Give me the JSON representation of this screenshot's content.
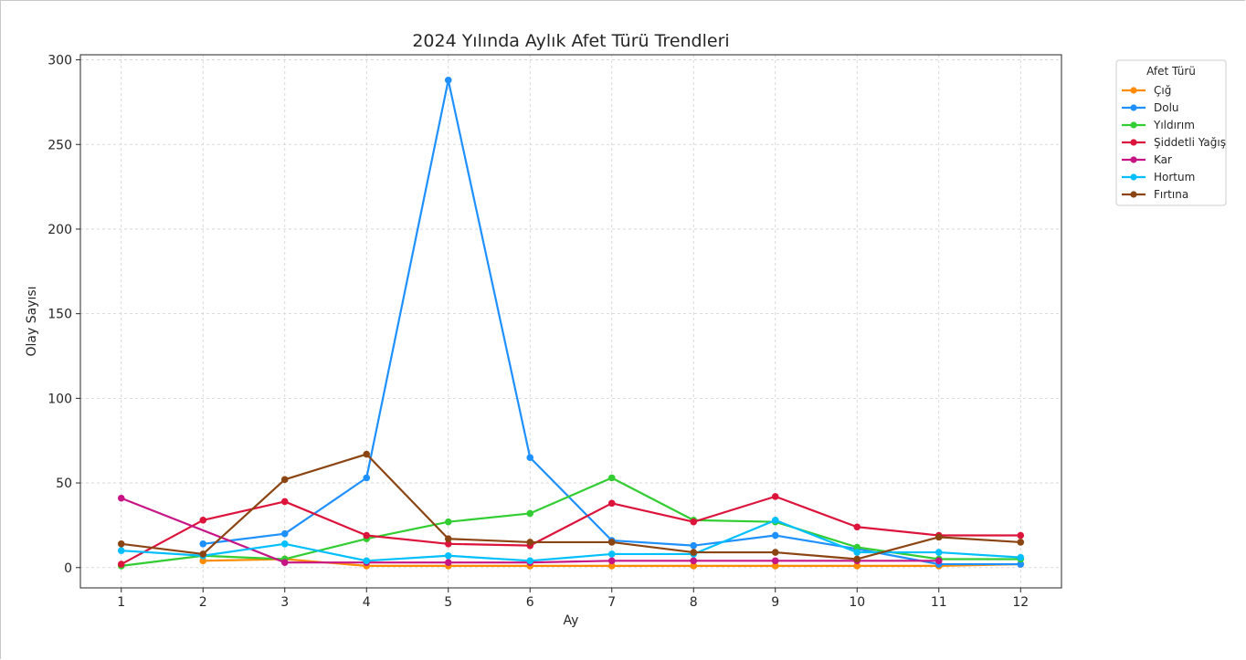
{
  "chart_data": {
    "type": "line",
    "title": "2024 Yılında Aylık Afet Türü Trendleri",
    "xlabel": "Ay",
    "ylabel": "Olay Sayısı",
    "x": [
      1,
      2,
      3,
      4,
      5,
      6,
      7,
      8,
      9,
      10,
      11,
      12
    ],
    "xticks": [
      "1",
      "2",
      "3",
      "4",
      "5",
      "6",
      "7",
      "8",
      "9",
      "10",
      "11",
      "12"
    ],
    "yticks": [
      "0",
      "50",
      "100",
      "150",
      "200",
      "250",
      "300"
    ],
    "ylim": [
      -12,
      303
    ],
    "xlim": [
      0.5,
      12.5
    ],
    "grid": true,
    "legend_title": "Afet Türü",
    "legend_position": "outside-top-right",
    "series": [
      {
        "name": "Çığ",
        "color": "#ff8c00",
        "x": [
          2,
          3,
          4,
          5,
          6,
          7,
          8,
          9,
          10,
          11,
          12
        ],
        "values": [
          4,
          5,
          1,
          1,
          1,
          1,
          1,
          1,
          1,
          1,
          2
        ]
      },
      {
        "name": "Dolu",
        "color": "#1e90ff",
        "x": [
          2,
          3,
          4,
          5,
          6,
          7,
          8,
          9,
          10,
          11,
          12
        ],
        "values": [
          14,
          20,
          53,
          288,
          65,
          16,
          13,
          19,
          11,
          2,
          2
        ]
      },
      {
        "name": "Yıldırım",
        "color": "#32cd32",
        "x": [
          1,
          2,
          3,
          4,
          5,
          6,
          7,
          8,
          9,
          10,
          11,
          12
        ],
        "values": [
          1,
          7,
          5,
          17,
          27,
          32,
          53,
          28,
          27,
          12,
          5,
          5
        ]
      },
      {
        "name": "Şiddetli Yağış",
        "color": "#dc143c",
        "x": [
          1,
          2,
          3,
          4,
          5,
          6,
          7,
          8,
          9,
          10,
          11,
          12
        ],
        "values": [
          2,
          28,
          39,
          19,
          14,
          13,
          38,
          27,
          42,
          24,
          19,
          19
        ]
      },
      {
        "name": "Kar",
        "color": "#c71585",
        "x": [
          1,
          3,
          4,
          5,
          6,
          7,
          8,
          9,
          10,
          11
        ],
        "values": [
          41,
          3,
          3,
          3,
          3,
          4,
          4,
          4,
          4,
          4
        ]
      },
      {
        "name": "Hortum",
        "color": "#00bfff",
        "x": [
          1,
          2,
          3,
          4,
          5,
          6,
          7,
          8,
          9,
          10,
          11,
          12
        ],
        "values": [
          10,
          7,
          14,
          4,
          7,
          4,
          8,
          8,
          28,
          9,
          9,
          6
        ]
      },
      {
        "name": "Fırtına",
        "color": "#8b4513",
        "x": [
          1,
          2,
          3,
          4,
          5,
          6,
          7,
          8,
          9,
          10,
          11,
          12
        ],
        "values": [
          14,
          8,
          52,
          67,
          17,
          15,
          15,
          9,
          9,
          5,
          18,
          15
        ]
      }
    ]
  }
}
